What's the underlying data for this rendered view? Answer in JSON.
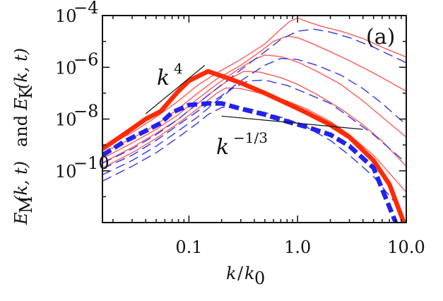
{
  "chart_data": {
    "type": "line",
    "scale": {
      "x": "log",
      "y": "log"
    },
    "xlim": [
      0.016,
      10.0
    ],
    "ylim": [
      1e-12,
      0.0001
    ],
    "grid": false,
    "panel_label": "(a)",
    "xlabel_parts": {
      "k": "k",
      "slash": "/",
      "k0": "k",
      "k0_sub": "0"
    },
    "ylabel_parts": {
      "E": "E",
      "M": "M",
      "args": "(k, t)",
      "and": "and",
      "K": "K"
    },
    "x_ticks": [
      {
        "value": 0.1,
        "label": "0.1"
      },
      {
        "value": 1.0,
        "label": "1.0"
      },
      {
        "value": 10.0,
        "label": "10.0"
      }
    ],
    "y_ticks": [
      {
        "value": 0.0001,
        "base": "10",
        "exp": "−4"
      },
      {
        "value": 1e-06,
        "base": "10",
        "exp": "−6"
      },
      {
        "value": 1e-08,
        "base": "10",
        "exp": "−8"
      },
      {
        "value": 1e-10,
        "base": "10",
        "exp": "−10"
      }
    ],
    "annotations": {
      "k4": {
        "base": "k",
        "exp": "4",
        "line": [
          [
            0.04,
            1.6e-08
          ],
          [
            0.14,
            1.2e-06
          ]
        ]
      },
      "kmthird": {
        "base": "k",
        "exp": "−1/3",
        "line": [
          [
            0.2,
            1.3e-08
          ],
          [
            4.0,
            4e-09
          ]
        ]
      }
    },
    "series": [
      {
        "style": "magnetic-thin",
        "color": "#ff5a5a",
        "x": [
          0.016,
          0.03,
          0.05,
          0.08,
          0.12,
          0.18,
          0.3,
          0.5,
          0.7,
          0.85,
          1.0,
          1.2,
          1.6,
          2.5,
          4,
          6,
          10
        ],
        "y": [
          8e-10,
          3e-09,
          1.2e-08,
          5e-08,
          2e-07,
          6e-07,
          2e-06,
          8e-06,
          3e-05,
          6e-05,
          8e-05,
          6e-05,
          4e-05,
          2.5e-05,
          1.3e-05,
          6e-06,
          2.5e-06
        ]
      },
      {
        "style": "magnetic-thin",
        "color": "#ff5a5a",
        "x": [
          0.016,
          0.03,
          0.05,
          0.08,
          0.12,
          0.18,
          0.3,
          0.45,
          0.6,
          0.8,
          1.0,
          1.3,
          2,
          3,
          5,
          10
        ],
        "y": [
          5e-10,
          1.8e-09,
          6e-09,
          2.5e-08,
          1e-07,
          3.5e-07,
          1.2e-06,
          4e-06,
          1e-05,
          1.6e-05,
          1.4e-05,
          9e-06,
          4e-06,
          1.8e-06,
          6e-07,
          1.2e-07
        ]
      },
      {
        "style": "magnetic-thin",
        "color": "#ff5a5a",
        "x": [
          0.016,
          0.03,
          0.05,
          0.08,
          0.12,
          0.18,
          0.28,
          0.4,
          0.5,
          0.7,
          1.0,
          1.5,
          2.5,
          4,
          6,
          10
        ],
        "y": [
          3e-10,
          1.2e-09,
          4e-09,
          1.5e-08,
          6e-08,
          2.2e-07,
          8e-07,
          2e-06,
          3e-06,
          2.6e-06,
          1.6e-06,
          7e-07,
          2.2e-07,
          5e-08,
          1.2e-08,
          2e-09
        ]
      },
      {
        "style": "magnetic-thin",
        "color": "#ff5a5a",
        "x": [
          0.016,
          0.03,
          0.05,
          0.08,
          0.12,
          0.18,
          0.25,
          0.32,
          0.45,
          0.7,
          1.0,
          1.5,
          2.5,
          4,
          6,
          10
        ],
        "y": [
          2e-10,
          8e-10,
          2.8e-09,
          1e-08,
          4e-08,
          1.5e-07,
          4e-07,
          7e-07,
          6.5e-07,
          4e-07,
          2.2e-07,
          9e-08,
          2.5e-08,
          6e-09,
          1.4e-09,
          1.5e-10
        ]
      },
      {
        "style": "magnetic-thin",
        "color": "#ff5a5a",
        "x": [
          0.016,
          0.03,
          0.05,
          0.08,
          0.12,
          0.18,
          0.22,
          0.3,
          0.5,
          0.8,
          1.2,
          2,
          3,
          5,
          10
        ],
        "y": [
          1.3e-10,
          5e-10,
          1.8e-09,
          7e-09,
          2.5e-08,
          1e-07,
          1.6e-07,
          1.5e-07,
          9e-08,
          5e-08,
          2.5e-08,
          8e-09,
          2.5e-09,
          4e-10,
          1.5e-11
        ]
      },
      {
        "style": "kinetic-thin",
        "color": "#3333ee",
        "x": [
          0.016,
          0.03,
          0.05,
          0.08,
          0.12,
          0.18,
          0.3,
          0.5,
          0.7,
          1.0,
          1.4,
          2,
          3,
          5,
          10
        ],
        "y": [
          2e-10,
          7e-10,
          2.5e-09,
          1e-08,
          4e-08,
          1.5e-07,
          8e-07,
          4e-06,
          1.2e-05,
          2.5e-05,
          3e-05,
          2.3e-05,
          1.4e-05,
          6e-06,
          1.5e-06
        ]
      },
      {
        "style": "kinetic-thin",
        "color": "#3333ee",
        "x": [
          0.016,
          0.03,
          0.05,
          0.08,
          0.12,
          0.2,
          0.3,
          0.5,
          0.7,
          1.0,
          1.5,
          2.5,
          4,
          6,
          10
        ],
        "y": [
          1.2e-10,
          4e-10,
          1.5e-09,
          6e-09,
          2e-08,
          8e-08,
          3e-07,
          1.2e-06,
          2.2e-06,
          2e-06,
          1.2e-06,
          5e-07,
          1.5e-07,
          4e-08,
          6e-09
        ]
      },
      {
        "style": "kinetic-thin",
        "color": "#3333ee",
        "x": [
          0.016,
          0.03,
          0.05,
          0.08,
          0.12,
          0.18,
          0.25,
          0.35,
          0.5,
          0.8,
          1.2,
          2,
          3,
          5,
          10
        ],
        "y": [
          7e-11,
          2.5e-10,
          9e-10,
          3.5e-09,
          1.2e-08,
          5e-08,
          1.5e-07,
          3e-07,
          3.2e-07,
          2e-07,
          1e-07,
          4e-08,
          1.2e-08,
          2.5e-09,
          2e-10
        ]
      },
      {
        "style": "kinetic-thin",
        "color": "#3333ee",
        "x": [
          0.016,
          0.03,
          0.05,
          0.08,
          0.12,
          0.15,
          0.2,
          0.3,
          0.5,
          0.8,
          1.2,
          2,
          3,
          5,
          9
        ],
        "y": [
          4e-11,
          1.5e-10,
          5e-10,
          2e-09,
          7e-09,
          1.5e-08,
          2.8e-08,
          3e-08,
          1.8e-08,
          1e-08,
          5e-09,
          1.5e-09,
          4e-10,
          6e-11,
          3e-12
        ]
      },
      {
        "style": "magnetic-thick",
        "color": "#ff2a00",
        "x": [
          0.016,
          0.025,
          0.04,
          0.055,
          0.08,
          0.1,
          0.15,
          0.22,
          0.3,
          0.5,
          0.8,
          1.2,
          2,
          3,
          5,
          7,
          9.5
        ],
        "y": [
          7e-10,
          2.5e-09,
          1e-08,
          2e-08,
          1.2e-07,
          3e-07,
          7e-07,
          4e-07,
          2.5e-07,
          1e-07,
          4e-08,
          1.8e-08,
          6e-09,
          2e-09,
          2.5e-10,
          3e-11,
          1e-12
        ]
      },
      {
        "style": "kinetic-thick",
        "color": "#2222ee",
        "x": [
          0.016,
          0.025,
          0.04,
          0.055,
          0.07,
          0.1,
          0.15,
          0.2,
          0.3,
          0.5,
          0.8,
          1.2,
          2,
          3,
          5,
          8
        ],
        "y": [
          4e-10,
          1.3e-09,
          3.5e-09,
          7e-09,
          1.8e-08,
          3.5e-08,
          4e-08,
          4e-08,
          2.5e-08,
          1.5e-08,
          8e-09,
          5e-09,
          2.5e-09,
          9e-10,
          1.3e-10,
          1e-12
        ]
      }
    ]
  }
}
